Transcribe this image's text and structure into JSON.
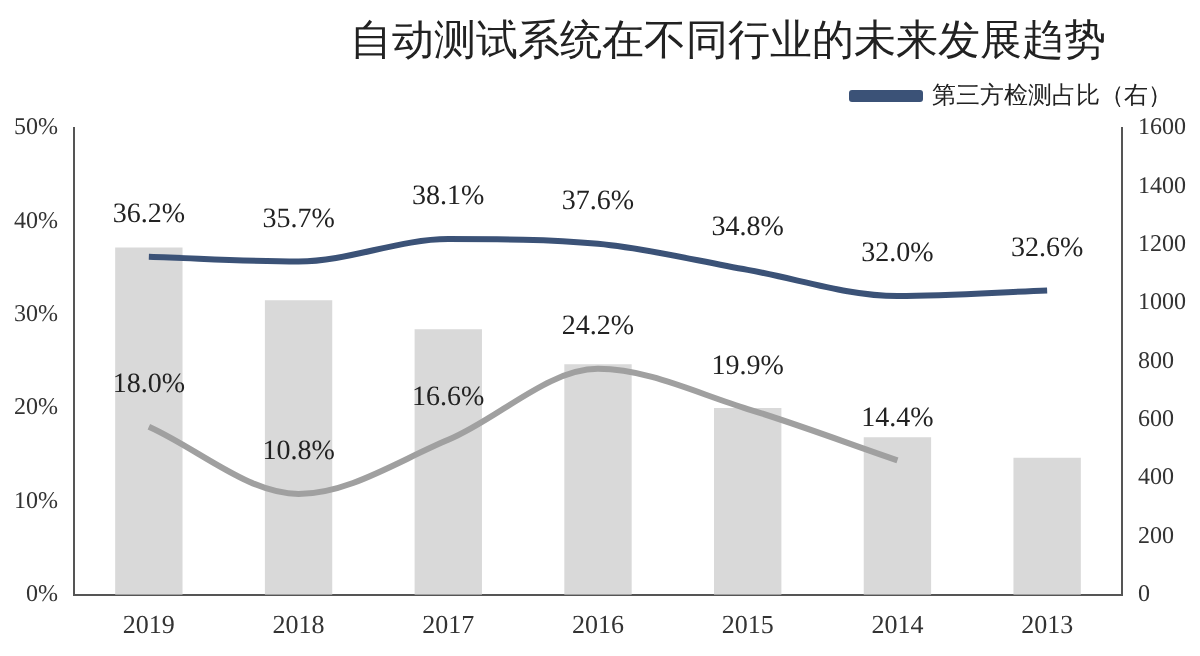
{
  "chart_data": {
    "type": "bar",
    "title": "自动测试系统在不同行业的未来发展趋势",
    "categories": [
      "2019",
      "2018",
      "2017",
      "2016",
      "2015",
      "2014",
      "2013"
    ],
    "series": [
      {
        "axis": "y2",
        "color": "#d9d9d9",
        "values": [
          1190,
          1010,
          910,
          790,
          640,
          540,
          470
        ]
      },
      {
        "type": "line",
        "name": "第三方检测占比（右）",
        "color": "#3b5277",
        "values": [
          36.2,
          35.7,
          38.1,
          37.6,
          34.8,
          32.0,
          32.6
        ],
        "value_labels": [
          "36.2%",
          "35.7%",
          "38.1%",
          "37.6%",
          "34.8%",
          "32.0%",
          "32.6%"
        ]
      },
      {
        "type": "line",
        "color": "#a0a0a0",
        "values": [
          18.0,
          10.8,
          16.6,
          24.2,
          19.9,
          14.4,
          null
        ],
        "value_labels": [
          "18.0%",
          "10.8%",
          "16.6%",
          "24.2%",
          "19.9%",
          "14.4%",
          null
        ]
      }
    ],
    "ylim": [
      0,
      50
    ],
    "yticks": [
      {
        "value": 0,
        "label": "0%"
      },
      {
        "value": 10,
        "label": "10%"
      },
      {
        "value": 20,
        "label": "20%"
      },
      {
        "value": 30,
        "label": "30%"
      },
      {
        "value": 40,
        "label": "40%"
      },
      {
        "value": 50,
        "label": "50%"
      }
    ],
    "y2lim": [
      0,
      1600
    ],
    "y2ticks": [
      0,
      200,
      400,
      600,
      800,
      1000,
      1200,
      1400,
      1600
    ],
    "grid": false,
    "legend": "top right",
    "marker": "none",
    "line_style": "solid"
  }
}
